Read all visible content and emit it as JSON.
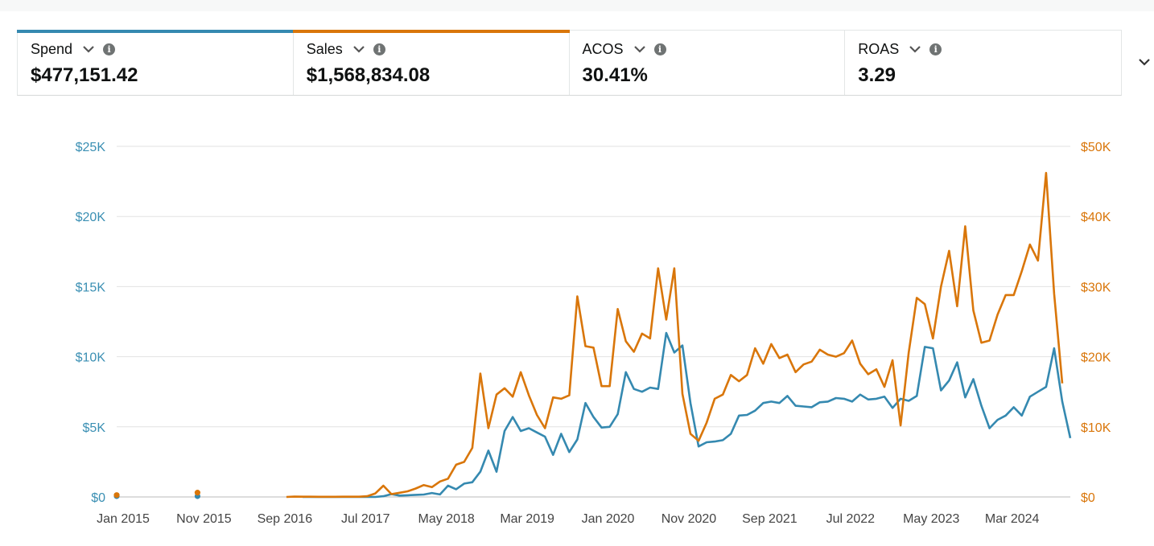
{
  "metrics": [
    {
      "label": "Spend",
      "value": "$477,151.42",
      "bar_color": "#3589b0"
    },
    {
      "label": "Sales",
      "value": "$1,568,834.08",
      "bar_color": "#d9760a"
    },
    {
      "label": "ACOS",
      "value": "30.41%",
      "bar_color": ""
    },
    {
      "label": "ROAS",
      "value": "3.29",
      "bar_color": ""
    }
  ],
  "icons": {
    "dropdown": "chevron-down-icon",
    "info": "info-icon",
    "expand": "chevron-down-icon"
  },
  "chart_data": {
    "type": "line",
    "x_tick_labels": [
      "Jan 2015",
      "Nov 2015",
      "Sep 2016",
      "Jul 2017",
      "May 2018",
      "Mar 2019",
      "Jan 2020",
      "Nov 2020",
      "Sep 2021",
      "Jul 2022",
      "May 2023",
      "Mar 2024"
    ],
    "y_left": {
      "ticks": [
        "$0",
        "$5K",
        "$10K",
        "$15K",
        "$20K",
        "$25K"
      ],
      "range": [
        0,
        25000
      ],
      "color": "#3a8fb3"
    },
    "y_right": {
      "ticks": [
        "$0",
        "$10K",
        "$20K",
        "$30K",
        "$40K",
        "$50K"
      ],
      "range": [
        0,
        50000
      ],
      "color": "#d9760a"
    },
    "grid": true,
    "series": [
      {
        "name": "Spend",
        "axis": "left",
        "color": "#3589b0",
        "isolated": [
          {
            "x": "2015-01",
            "y": 0
          },
          {
            "x": "2015-11",
            "y": 0
          }
        ],
        "points": [
          [
            "2016-12",
            0
          ],
          [
            "2017-01",
            0
          ],
          [
            "2017-02",
            0
          ],
          [
            "2017-03",
            0
          ],
          [
            "2017-04",
            0
          ],
          [
            "2017-05",
            0
          ],
          [
            "2017-06",
            0
          ],
          [
            "2017-07",
            0
          ],
          [
            "2017-08",
            0
          ],
          [
            "2017-09",
            0
          ],
          [
            "2017-10",
            50
          ],
          [
            "2017-11",
            200
          ],
          [
            "2017-12",
            100
          ],
          [
            "2018-01",
            120
          ],
          [
            "2018-02",
            150
          ],
          [
            "2018-03",
            170
          ],
          [
            "2018-04",
            280
          ],
          [
            "2018-05",
            180
          ],
          [
            "2018-06",
            800
          ],
          [
            "2018-07",
            550
          ],
          [
            "2018-08",
            950
          ],
          [
            "2018-09",
            1050
          ],
          [
            "2018-10",
            1800
          ],
          [
            "2018-11",
            3300
          ],
          [
            "2018-12",
            1800
          ],
          [
            "2019-01",
            4700
          ],
          [
            "2019-02",
            5700
          ],
          [
            "2019-03",
            4700
          ],
          [
            "2019-04",
            4900
          ],
          [
            "2019-05",
            4600
          ],
          [
            "2019-06",
            4300
          ],
          [
            "2019-07",
            3000
          ],
          [
            "2019-08",
            4500
          ],
          [
            "2019-09",
            3200
          ],
          [
            "2019-10",
            4100
          ],
          [
            "2019-11",
            6700
          ],
          [
            "2019-12",
            5700
          ],
          [
            "2020-01",
            4950
          ],
          [
            "2020-02",
            5000
          ],
          [
            "2020-03",
            5900
          ],
          [
            "2020-04",
            8900
          ],
          [
            "2020-05",
            7700
          ],
          [
            "2020-06",
            7500
          ],
          [
            "2020-07",
            7800
          ],
          [
            "2020-08",
            7700
          ],
          [
            "2020-09",
            11700
          ],
          [
            "2020-10",
            10300
          ],
          [
            "2020-11",
            10800
          ],
          [
            "2020-12",
            6700
          ],
          [
            "2021-01",
            3600
          ],
          [
            "2021-02",
            3900
          ],
          [
            "2021-03",
            3950
          ],
          [
            "2021-04",
            4050
          ],
          [
            "2021-05",
            4500
          ],
          [
            "2021-06",
            5800
          ],
          [
            "2021-07",
            5850
          ],
          [
            "2021-08",
            6150
          ],
          [
            "2021-09",
            6700
          ],
          [
            "2021-10",
            6800
          ],
          [
            "2021-11",
            6700
          ],
          [
            "2021-12",
            7200
          ],
          [
            "2022-01",
            6500
          ],
          [
            "2022-02",
            6450
          ],
          [
            "2022-03",
            6400
          ],
          [
            "2022-04",
            6750
          ],
          [
            "2022-05",
            6800
          ],
          [
            "2022-06",
            7050
          ],
          [
            "2022-07",
            7000
          ],
          [
            "2022-08",
            6800
          ],
          [
            "2022-09",
            7300
          ],
          [
            "2022-10",
            6950
          ],
          [
            "2022-11",
            7000
          ],
          [
            "2022-12",
            7150
          ],
          [
            "2023-01",
            6350
          ],
          [
            "2023-02",
            7000
          ],
          [
            "2023-03",
            6850
          ],
          [
            "2023-04",
            7200
          ],
          [
            "2023-05",
            10700
          ],
          [
            "2023-06",
            10600
          ],
          [
            "2023-07",
            7600
          ],
          [
            "2023-08",
            8300
          ],
          [
            "2023-09",
            9600
          ],
          [
            "2023-10",
            7100
          ],
          [
            "2023-11",
            8400
          ],
          [
            "2023-12",
            6500
          ],
          [
            "2024-01",
            4900
          ],
          [
            "2024-02",
            5500
          ],
          [
            "2024-03",
            5800
          ],
          [
            "2024-04",
            6400
          ],
          [
            "2024-05",
            5800
          ],
          [
            "2024-06",
            7150
          ],
          [
            "2024-07",
            7500
          ],
          [
            "2024-08",
            7850
          ],
          [
            "2024-09",
            10600
          ],
          [
            "2024-10",
            6800
          ],
          [
            "2024-11",
            4200
          ]
        ]
      },
      {
        "name": "Sales",
        "axis": "right",
        "color": "#d9760a",
        "isolated": [
          {
            "x": "2015-01",
            "y": 150
          },
          {
            "x": "2015-11",
            "y": 500
          }
        ],
        "points": [
          [
            "2016-10",
            0
          ],
          [
            "2016-11",
            50
          ],
          [
            "2016-12",
            40
          ],
          [
            "2017-01",
            30
          ],
          [
            "2017-02",
            20
          ],
          [
            "2017-03",
            20
          ],
          [
            "2017-04",
            20
          ],
          [
            "2017-05",
            30
          ],
          [
            "2017-06",
            30
          ],
          [
            "2017-07",
            40
          ],
          [
            "2017-08",
            100
          ],
          [
            "2017-09",
            500
          ],
          [
            "2017-10",
            1600
          ],
          [
            "2017-11",
            400
          ],
          [
            "2017-12",
            600
          ],
          [
            "2018-01",
            800
          ],
          [
            "2018-02",
            1200
          ],
          [
            "2018-03",
            1700
          ],
          [
            "2018-04",
            1400
          ],
          [
            "2018-05",
            2200
          ],
          [
            "2018-06",
            2600
          ],
          [
            "2018-07",
            4600
          ],
          [
            "2018-08",
            5000
          ],
          [
            "2018-09",
            7000
          ],
          [
            "2018-10",
            17600
          ],
          [
            "2018-11",
            9800
          ],
          [
            "2018-12",
            14600
          ],
          [
            "2019-01",
            15500
          ],
          [
            "2019-02",
            14300
          ],
          [
            "2019-03",
            17800
          ],
          [
            "2019-04",
            14500
          ],
          [
            "2019-05",
            11700
          ],
          [
            "2019-06",
            9800
          ],
          [
            "2019-07",
            14200
          ],
          [
            "2019-08",
            14000
          ],
          [
            "2019-09",
            14500
          ],
          [
            "2019-10",
            28600
          ],
          [
            "2019-11",
            21500
          ],
          [
            "2019-12",
            21300
          ],
          [
            "2020-01",
            15800
          ],
          [
            "2020-02",
            15800
          ],
          [
            "2020-03",
            26800
          ],
          [
            "2020-04",
            22200
          ],
          [
            "2020-05",
            20700
          ],
          [
            "2020-06",
            23300
          ],
          [
            "2020-07",
            22600
          ],
          [
            "2020-08",
            32600
          ],
          [
            "2020-09",
            25300
          ],
          [
            "2020-10",
            32600
          ],
          [
            "2020-11",
            14700
          ],
          [
            "2020-12",
            9000
          ],
          [
            "2021-01",
            8000
          ],
          [
            "2021-02",
            10600
          ],
          [
            "2021-03",
            14000
          ],
          [
            "2021-04",
            14600
          ],
          [
            "2021-05",
            17400
          ],
          [
            "2021-06",
            16500
          ],
          [
            "2021-07",
            17400
          ],
          [
            "2021-08",
            21200
          ],
          [
            "2021-09",
            19000
          ],
          [
            "2021-10",
            21800
          ],
          [
            "2021-11",
            19800
          ],
          [
            "2021-12",
            20300
          ],
          [
            "2022-01",
            17800
          ],
          [
            "2022-02",
            18900
          ],
          [
            "2022-03",
            19300
          ],
          [
            "2022-04",
            21000
          ],
          [
            "2022-05",
            20300
          ],
          [
            "2022-06",
            20000
          ],
          [
            "2022-07",
            20500
          ],
          [
            "2022-08",
            22300
          ],
          [
            "2022-09",
            19000
          ],
          [
            "2022-10",
            17500
          ],
          [
            "2022-11",
            18200
          ],
          [
            "2022-12",
            15700
          ],
          [
            "2023-01",
            19500
          ],
          [
            "2023-02",
            10200
          ],
          [
            "2023-03",
            20600
          ],
          [
            "2023-04",
            28400
          ],
          [
            "2023-05",
            27500
          ],
          [
            "2023-06",
            22600
          ],
          [
            "2023-07",
            30000
          ],
          [
            "2023-08",
            35100
          ],
          [
            "2023-09",
            27200
          ],
          [
            "2023-10",
            38600
          ],
          [
            "2023-11",
            26600
          ],
          [
            "2023-12",
            22000
          ],
          [
            "2024-01",
            22300
          ],
          [
            "2024-02",
            26000
          ],
          [
            "2024-03",
            28800
          ],
          [
            "2024-04",
            28800
          ],
          [
            "2024-05",
            32200
          ],
          [
            "2024-06",
            36000
          ],
          [
            "2024-07",
            33700
          ],
          [
            "2024-08",
            46200
          ],
          [
            "2024-09",
            29000
          ],
          [
            "2024-10",
            16200
          ]
        ]
      }
    ]
  }
}
